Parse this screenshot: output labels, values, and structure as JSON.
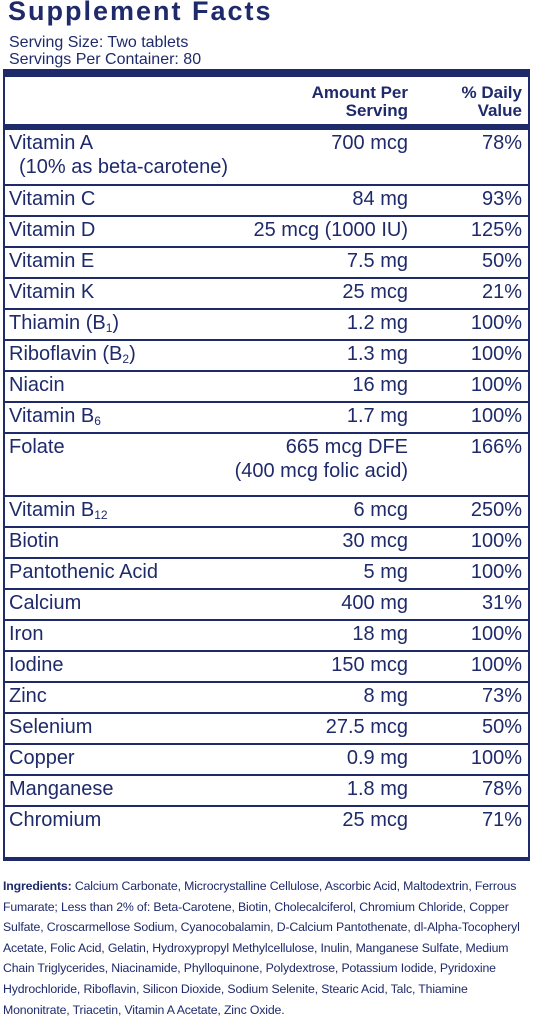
{
  "title": "Supplement Facts",
  "serving_size": "Serving Size: Two tablets",
  "servings_per_container": "Servings Per Container: 80",
  "header": {
    "amount_line1": "Amount Per",
    "amount_line2": "Serving",
    "dv_line1": "% Daily",
    "dv_line2": "Value"
  },
  "nutrients": [
    {
      "name": "Vitamin A",
      "name2": "(10% as beta-carotene)",
      "amount": "700 mcg",
      "dv": "78%"
    },
    {
      "name": "Vitamin C",
      "amount": "84 mg",
      "dv": "93%"
    },
    {
      "name": "Vitamin D",
      "amount": "25 mcg (1000 IU)",
      "dv": "125%"
    },
    {
      "name": "Vitamin E",
      "amount": "7.5 mg",
      "dv": "50%"
    },
    {
      "name": "Vitamin K",
      "amount": "25 mcg",
      "dv": "21%"
    },
    {
      "name": "Thiamin (B",
      "sub": "1",
      "name_tail": ")",
      "amount": "1.2 mg",
      "dv": "100%"
    },
    {
      "name": "Riboflavin (B",
      "sub": "2",
      "name_tail": ")",
      "amount": "1.3 mg",
      "dv": "100%"
    },
    {
      "name": "Niacin",
      "amount": "16 mg",
      "dv": "100%"
    },
    {
      "name": "Vitamin B",
      "sub": "6",
      "amount": "1.7 mg",
      "dv": "100%"
    },
    {
      "name": "Folate",
      "amount": "665 mcg DFE",
      "amount2": "(400 mcg folic acid)",
      "dv": "166%"
    },
    {
      "name": "Vitamin B",
      "sub": "12",
      "amount": "6 mcg",
      "dv": "250%"
    },
    {
      "name": "Biotin",
      "amount": "30 mcg",
      "dv": "100%"
    },
    {
      "name": "Pantothenic Acid",
      "amount": "5 mg",
      "dv": "100%"
    },
    {
      "name": "Calcium",
      "amount": "400 mg",
      "dv": "31%"
    },
    {
      "name": "Iron",
      "amount": "18 mg",
      "dv": "100%"
    },
    {
      "name": "Iodine",
      "amount": "150 mcg",
      "dv": "100%"
    },
    {
      "name": "Zinc",
      "amount": "8 mg",
      "dv": "73%"
    },
    {
      "name": "Selenium",
      "amount": "27.5 mcg",
      "dv": "50%"
    },
    {
      "name": "Copper",
      "amount": "0.9 mg",
      "dv": "100%"
    },
    {
      "name": "Manganese",
      "amount": "1.8 mg",
      "dv": "78%"
    },
    {
      "name": "Chromium",
      "amount": "25 mcg",
      "dv": "71%"
    }
  ],
  "ingredients": {
    "label": "Ingredients:",
    "text": "Calcium Carbonate, Microcrystalline  Cellulose, Ascorbic Acid, Maltodextrin, Ferrous Fumarate; Less than 2% of: Beta-Carotene, Biotin, Cholecalciferol, Chromium Chloride, Copper Sulfate, Croscarmellose Sodium, Cyanocobalamin, D-Calcium Pantothenate, dl-Alpha-Tocopheryl Acetate, Folic Acid, Gelatin, Hydroxypropyl Methylcellulose, Inulin, Manganese Sulfate, Medium Chain Triglycerides, Niacinamide, Phylloquinone, Polydextrose, Potassium Iodide, Pyridoxine Hydrochloride, Riboflavin, Silicon Dioxide, Sodium Selenite, Stearic Acid, Talc, Thiamine Mononitrate, Triacetin, Vitamin A Acetate, Zinc Oxide."
  }
}
